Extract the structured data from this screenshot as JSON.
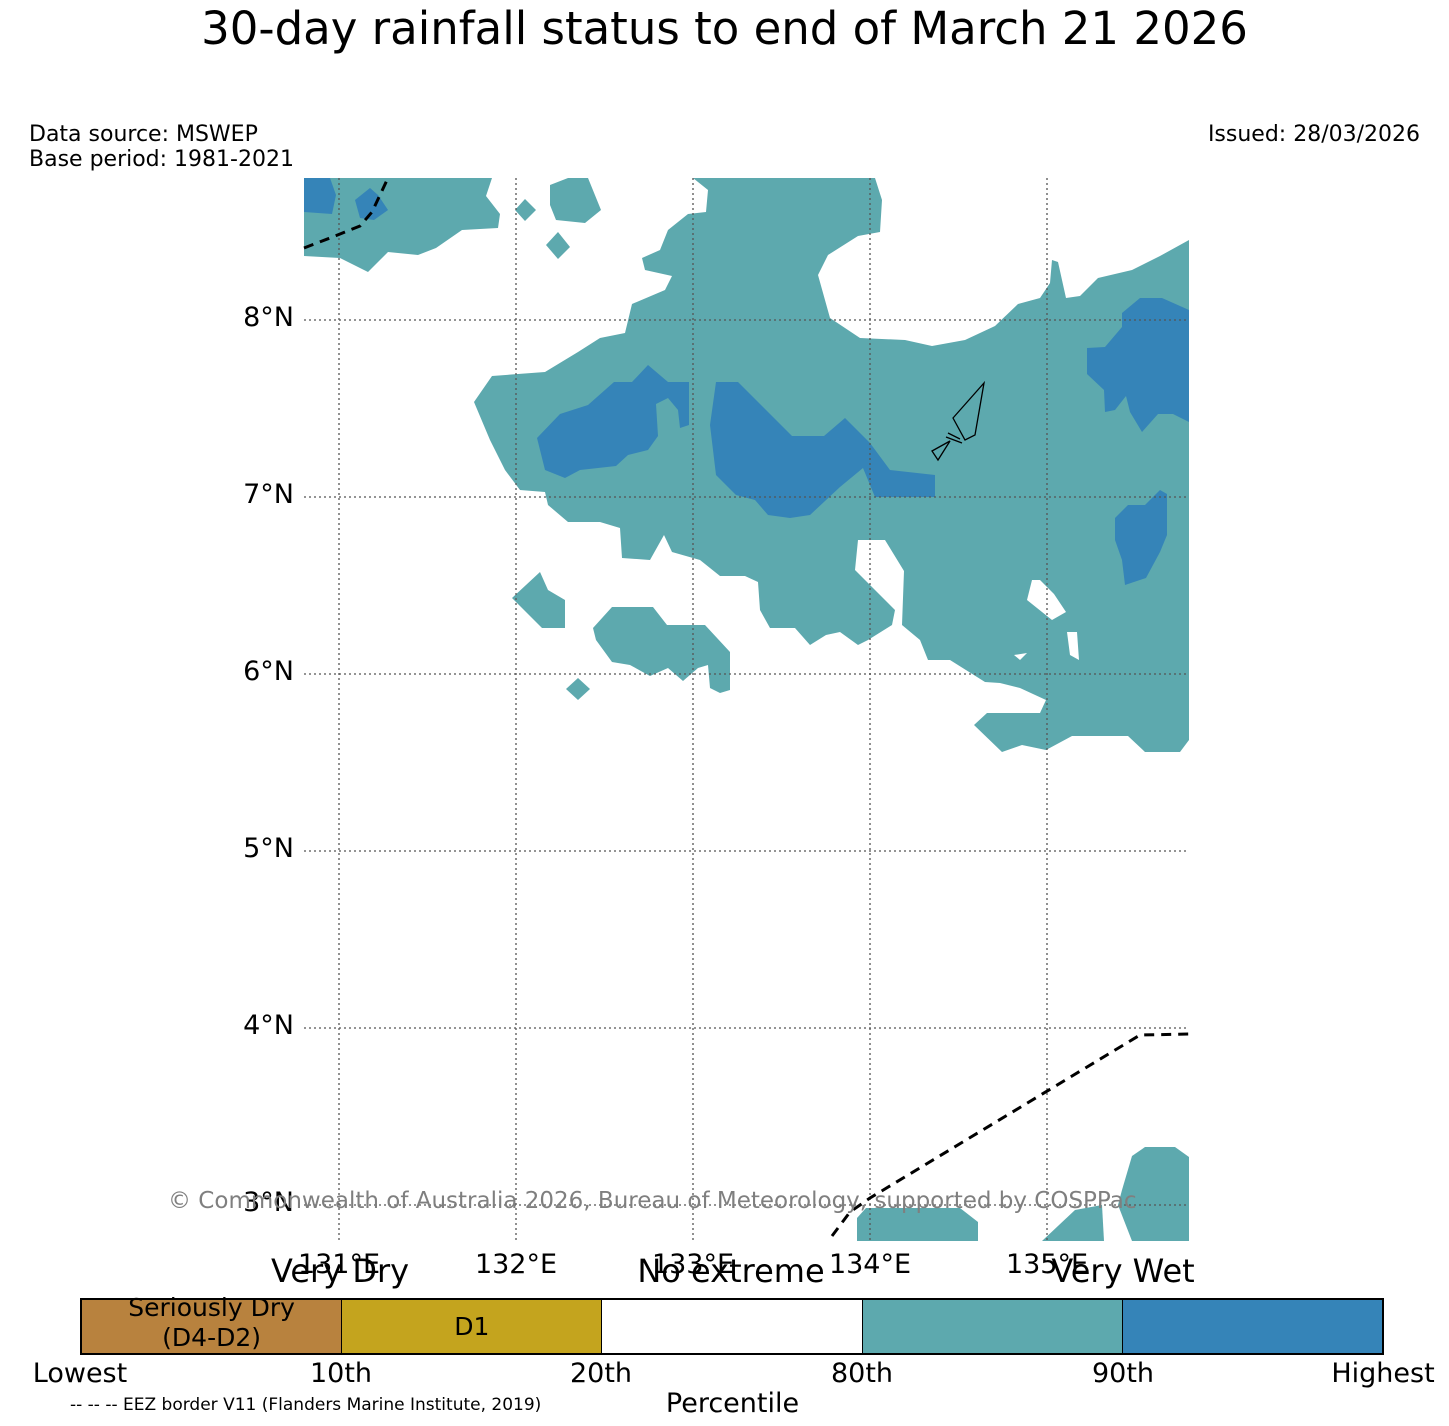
{
  "title": "30-day rainfall status to end of March 21 2026",
  "data_source": "Data source: MSWEP",
  "base_period": "Base period: 1981-2021",
  "issued": "Issued: 28/03/2026",
  "copyright": "© Commonwealth of Australia 2026, Bureau of Meteorology, supported by COSPPac",
  "latitude_labels": [
    "8°N",
    "7°N",
    "6°N",
    "5°N",
    "4°N",
    "3°N"
  ],
  "longitude_labels": [
    "131°E",
    "132°E",
    "133°E",
    "134°E",
    "135°E"
  ],
  "legend": {
    "category_labels": [
      "Very Dry",
      "No extreme",
      "Very Wet"
    ],
    "segments": [
      {
        "label": "Seriously Dry\n(D4-D2)",
        "color": "#b8823e"
      },
      {
        "label": "D1",
        "color": "#c4a41e"
      },
      {
        "label": "",
        "color": "#ffffff"
      },
      {
        "label": "",
        "color": "#5da9ae"
      },
      {
        "label": "",
        "color": "#3584b8"
      }
    ],
    "tick_labels": [
      "Lowest",
      "10th",
      "20th",
      "80th",
      "90th",
      "Highest"
    ],
    "axis_label": "Percentile",
    "eez_note": "-- -- -- EEZ border V11 (Flanders Marine Institute, 2019)"
  },
  "colors": {
    "very_wet": "#3584b8",
    "wet_80_90": "#5da9ae",
    "no_extreme": "#ffffff",
    "d1": "#c4a41e",
    "seriously_dry": "#b8823e"
  }
}
